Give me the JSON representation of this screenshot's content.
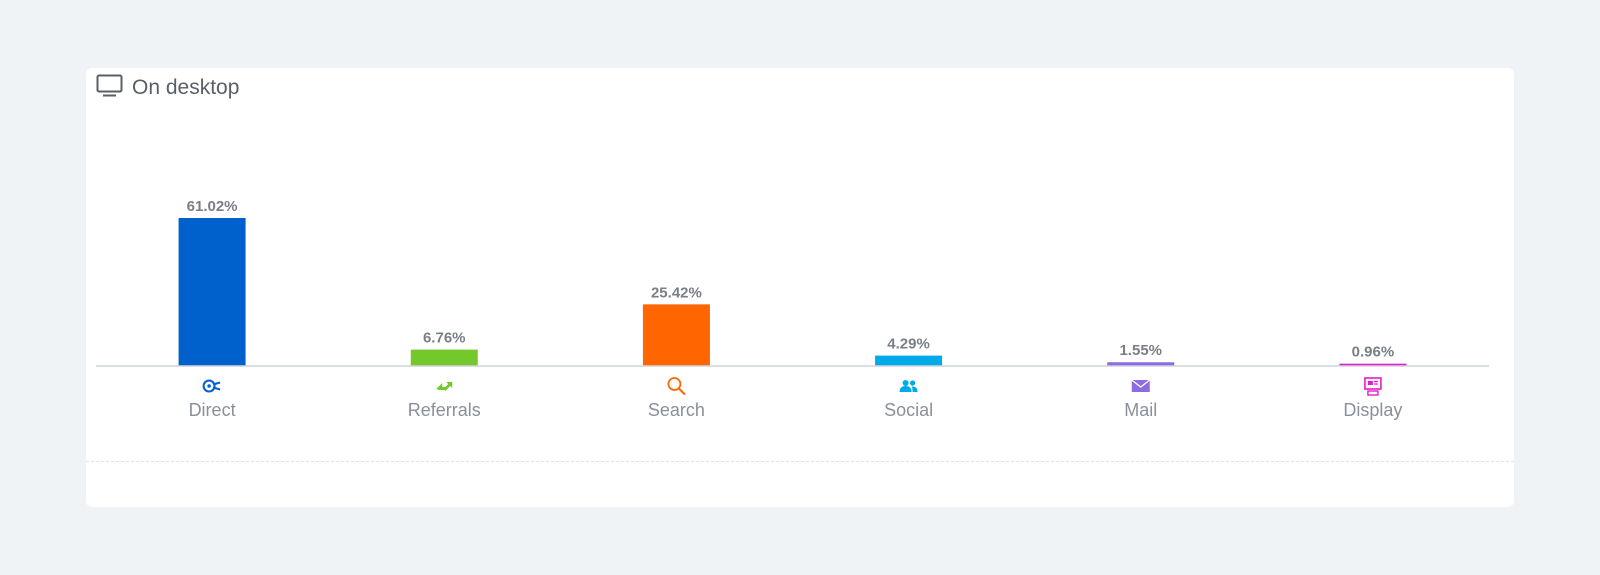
{
  "header": {
    "title": "On desktop",
    "icon": "desktop-icon"
  },
  "chart_data": {
    "type": "bar",
    "categories": [
      "Direct",
      "Referrals",
      "Search",
      "Social",
      "Mail",
      "Display"
    ],
    "values": [
      61.02,
      6.76,
      25.42,
      4.29,
      1.55,
      0.96
    ],
    "value_labels": [
      "61.02%",
      "6.76%",
      "25.42%",
      "4.29%",
      "1.55%",
      "0.96%"
    ],
    "colors": [
      "#0060cc",
      "#75c82c",
      "#ff6600",
      "#00aae8",
      "#8d6be0",
      "#e51ccc"
    ],
    "icons": [
      "direct-icon",
      "referrals-icon",
      "search-icon",
      "social-icon",
      "mail-icon",
      "display-icon"
    ],
    "unit": "%",
    "grid": false,
    "title": "",
    "xlabel": "",
    "ylabel": ""
  }
}
